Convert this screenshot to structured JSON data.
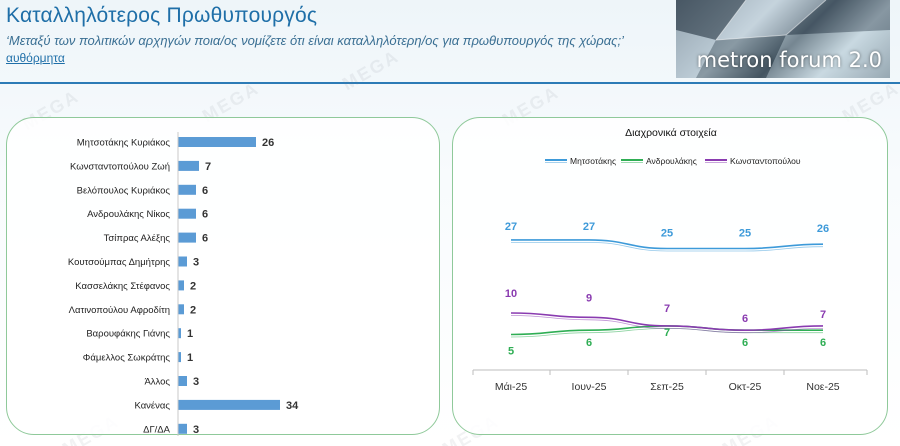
{
  "header": {
    "title": "Καταλληλότερος Πρωθυπουργός",
    "question": "‘Μεταξύ των πολιτικών αρχηγών ποια/ος νομίζετε ότι είναι καταλληλότερη/ος για πρωθυπουργός της χώρας;’",
    "subnote": "αυθόρμητα"
  },
  "logo": {
    "text": "metron forum",
    "version": "2.0"
  },
  "watermark_text": "MEGA",
  "colors": {
    "bar": "#5b9bd5",
    "mitsotakis": "#3d9ad9",
    "androulakis": "#2fae54",
    "konstantopoulou": "#8a3bb0",
    "panel_border": "#8fc99a",
    "accent": "#1f6fa8"
  },
  "chart_data": [
    {
      "type": "bar",
      "orientation": "horizontal",
      "categories": [
        "Μητσοτάκης Κυριάκος",
        "Κωνσταντοπούλου Ζωή",
        "Βελόπουλος Κυριάκος",
        "Ανδρουλάκης Νίκος",
        "Τσίπρας Αλέξης",
        "Κουτσούμπας Δημήτρης",
        "Κασσελάκης Στέφανος",
        "Λατινοπούλου Αφροδίτη",
        "Βαρουφάκης Γιάνης",
        "Φάμελλος Σωκράτης",
        "Άλλος",
        "Κανένας",
        "ΔΓ/ΔΑ"
      ],
      "values": [
        26,
        7,
        6,
        6,
        6,
        3,
        2,
        2,
        1,
        1,
        3,
        34,
        3
      ],
      "data_labels": true,
      "grid": false
    },
    {
      "type": "line",
      "title": "Διαχρονικά στοιχεία",
      "categories": [
        "Μάι-25",
        "Ιουν-25",
        "Σεπ-25",
        "Οκτ-25",
        "Νοε-25"
      ],
      "series": [
        {
          "name": "Μητσοτάκης",
          "values": [
            27,
            27,
            25,
            25,
            26
          ],
          "color": "#3d9ad9"
        },
        {
          "name": "Ανδρουλάκης",
          "values": [
            5,
            6,
            7,
            6,
            6
          ],
          "color": "#2fae54"
        },
        {
          "name": "Κωνσταντοπούλου",
          "values": [
            10,
            9,
            7,
            6,
            7
          ],
          "color": "#8a3bb0"
        }
      ],
      "legend": "top",
      "data_labels": true,
      "grid": false
    }
  ]
}
